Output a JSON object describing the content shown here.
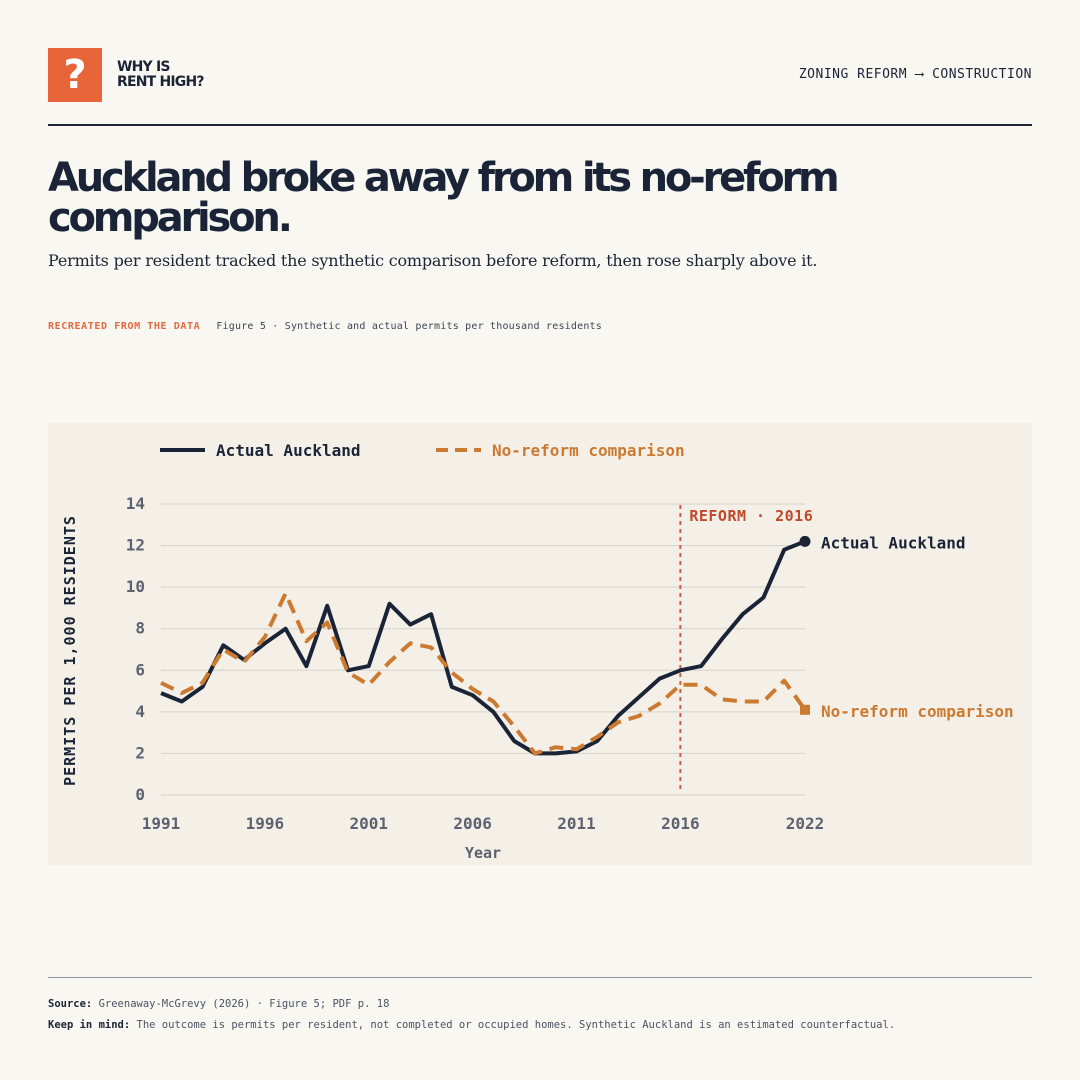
{
  "brand": {
    "icon": "question-mark-icon",
    "icon_glyph": "?",
    "line1": "WHY IS",
    "line2": "RENT HIGH?"
  },
  "topic": "ZONING REFORM ⟶ CONSTRUCTION",
  "headline": "Auckland broke away from its no-reform comparison.",
  "subtitle": "Permits per resident tracked the synthetic comparison before reform, then rose sharply above it.",
  "eyebrow": {
    "tag": "RECREATED FROM THE DATA",
    "figure": "Figure 5 · Synthetic and actual permits per thousand residents"
  },
  "colors": {
    "accent": "#e8653a",
    "actual": "#1b2436",
    "comparison": "#cc7a30",
    "reform": "#d0603a"
  },
  "chart_data": {
    "type": "line",
    "xlabel": "Year",
    "ylabel": "PERMITS PER 1,000 RESIDENTS",
    "xlim": [
      1991,
      2022
    ],
    "ylim": [
      0,
      14
    ],
    "x_ticks": [
      1991,
      1996,
      2001,
      2006,
      2011,
      2016,
      2022
    ],
    "y_ticks": [
      0,
      2,
      4,
      6,
      8,
      10,
      12,
      14
    ],
    "grid": "horizontal",
    "legend_position": "top-left",
    "x": [
      1991,
      1992,
      1993,
      1994,
      1995,
      1996,
      1997,
      1998,
      1999,
      2000,
      2001,
      2002,
      2003,
      2004,
      2005,
      2006,
      2007,
      2008,
      2009,
      2010,
      2011,
      2012,
      2013,
      2014,
      2015,
      2016,
      2017,
      2018,
      2019,
      2020,
      2021,
      2022
    ],
    "series": [
      {
        "name": "Actual Auckland",
        "end_label": "Actual Auckland",
        "style": "solid",
        "color": "#1b2436",
        "values": [
          4.9,
          4.5,
          5.2,
          7.2,
          6.5,
          7.3,
          8.0,
          6.2,
          9.1,
          6.0,
          6.2,
          9.2,
          8.2,
          8.7,
          5.2,
          4.8,
          4.0,
          2.6,
          2.0,
          2.0,
          2.1,
          2.6,
          3.8,
          4.7,
          5.6,
          6.0,
          6.2,
          7.5,
          8.7,
          9.5,
          11.8,
          12.2
        ]
      },
      {
        "name": "No-reform comparison",
        "end_label": "No-reform comparison",
        "style": "dashed",
        "color": "#cc7a30",
        "values": [
          5.4,
          4.9,
          5.4,
          7.0,
          6.4,
          7.6,
          9.7,
          7.4,
          8.3,
          5.9,
          5.3,
          6.4,
          7.3,
          7.1,
          5.9,
          5.1,
          4.5,
          3.3,
          2.0,
          2.3,
          2.2,
          2.8,
          3.5,
          3.8,
          4.4,
          5.3,
          5.3,
          4.6,
          4.5,
          4.5,
          5.5,
          4.1
        ]
      }
    ],
    "annotations": [
      {
        "type": "vline",
        "x": 2016,
        "label": "REFORM · 2016",
        "color": "#d0603a"
      }
    ]
  },
  "footer": {
    "source_label": "Source:",
    "source_text": "Greenaway-McGrevy (2026) · Figure 5; PDF p. 18",
    "note_label": "Keep in mind:",
    "note_text": "The outcome is permits per resident, not completed or occupied homes. Synthetic Auckland is an estimated counterfactual."
  }
}
